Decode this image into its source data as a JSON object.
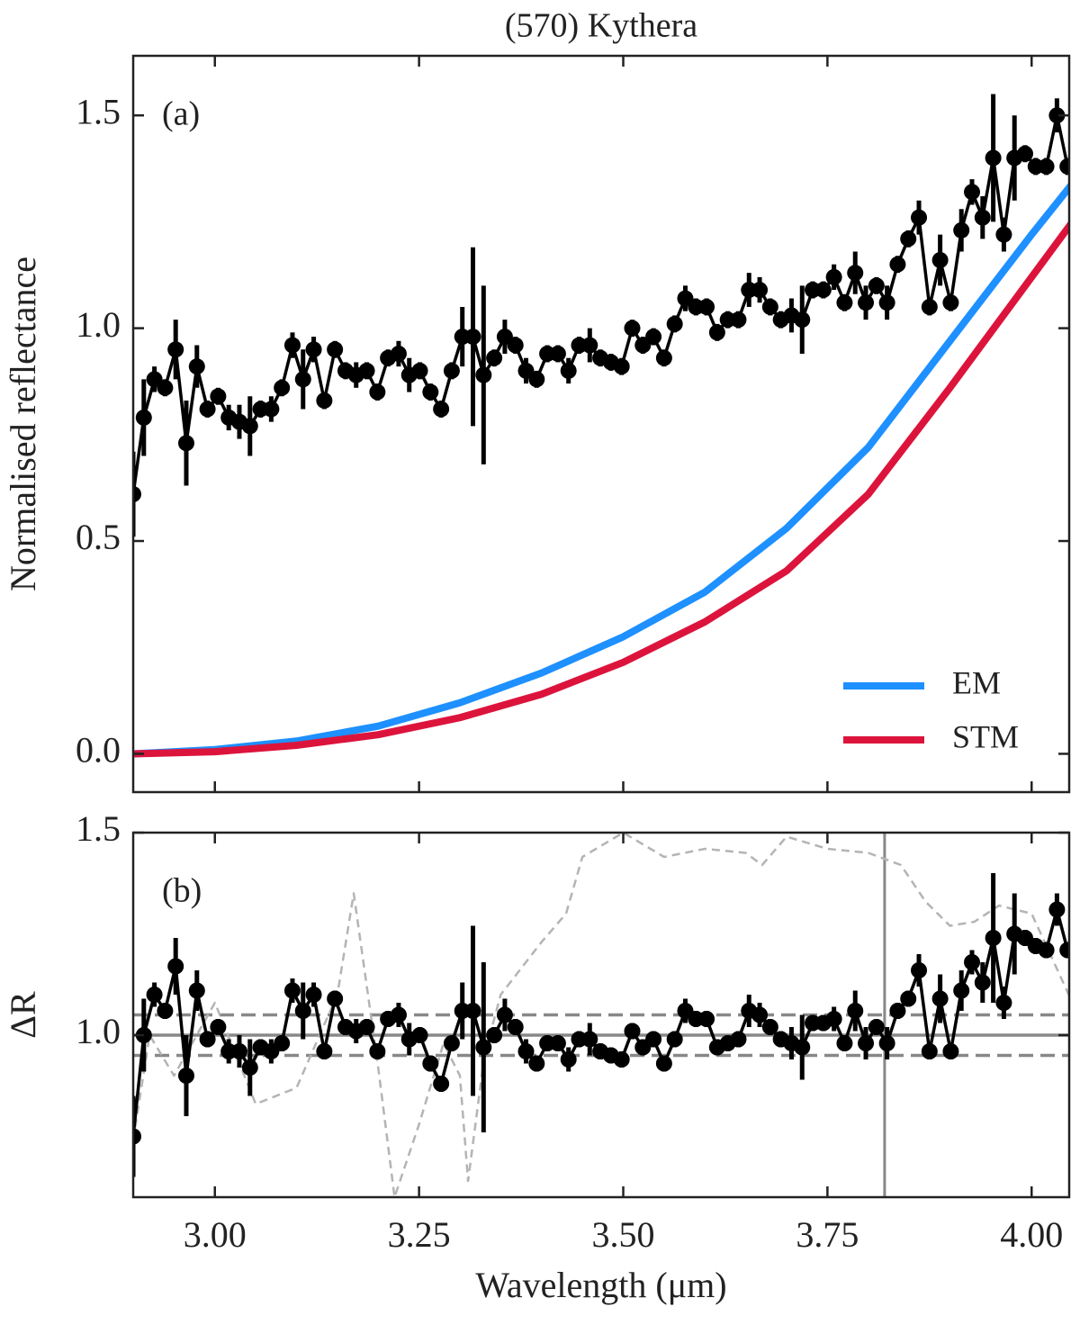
{
  "chart_data": [
    {
      "type": "line",
      "title": "(570) Kythera",
      "panel_label": "(a)",
      "ylabel": "Normalised reflectance",
      "xlim": [
        2.9,
        4.046
      ],
      "ylim": [
        -0.09,
        1.64
      ],
      "yticks": [
        {
          "value": 0,
          "label": "0.0"
        },
        0.5,
        {
          "value": 1,
          "label": "1.0"
        },
        1.5
      ],
      "legend": "lower right",
      "series": [
        {
          "color": "#000000",
          "marker": "o",
          "style": "solid",
          "x": [
            2.9,
            2.913,
            2.926,
            2.939,
            2.952,
            2.965,
            2.978,
            2.991,
            3.004,
            3.017,
            3.03,
            3.043,
            3.056,
            3.069,
            3.082,
            3.095,
            3.108,
            3.121,
            3.134,
            3.147,
            3.16,
            3.173,
            3.186,
            3.199,
            3.212,
            3.225,
            3.238,
            3.251,
            3.264,
            3.277,
            3.29,
            3.303,
            3.316,
            3.329,
            3.342,
            3.355,
            3.368,
            3.381,
            3.394,
            3.407,
            3.42,
            3.433,
            3.446,
            3.459,
            3.472,
            3.485,
            3.498,
            3.511,
            3.524,
            3.537,
            3.55,
            3.563,
            3.576,
            3.589,
            3.602,
            3.615,
            3.628,
            3.641,
            3.654,
            3.667,
            3.68,
            3.693,
            3.706,
            3.719,
            3.732,
            3.745,
            3.758,
            3.771,
            3.784,
            3.797,
            3.81,
            3.823,
            3.836,
            3.849,
            3.862,
            3.875,
            3.888,
            3.901,
            3.914,
            3.927,
            3.94,
            3.953,
            3.966,
            3.979,
            3.992,
            4.005,
            4.018,
            4.031,
            4.044
          ],
          "values": [
            0.61,
            0.79,
            0.88,
            0.86,
            0.95,
            0.73,
            0.91,
            0.81,
            0.84,
            0.79,
            0.78,
            0.77,
            0.81,
            0.81,
            0.86,
            0.96,
            0.88,
            0.95,
            0.83,
            0.95,
            0.9,
            0.89,
            0.9,
            0.85,
            0.93,
            0.94,
            0.89,
            0.9,
            0.85,
            0.81,
            0.9,
            0.98,
            0.98,
            0.89,
            0.93,
            0.98,
            0.96,
            0.9,
            0.88,
            0.94,
            0.94,
            0.9,
            0.96,
            0.96,
            0.93,
            0.92,
            0.91,
            1.0,
            0.96,
            0.98,
            0.93,
            1.01,
            1.07,
            1.05,
            1.05,
            0.99,
            1.02,
            1.02,
            1.09,
            1.09,
            1.05,
            1.02,
            1.03,
            1.02,
            1.09,
            1.09,
            1.12,
            1.06,
            1.13,
            1.06,
            1.1,
            1.06,
            1.15,
            1.21,
            1.26,
            1.05,
            1.16,
            1.06,
            1.23,
            1.32,
            1.26,
            1.4,
            1.22,
            1.4,
            1.41,
            1.38,
            1.38,
            1.5,
            1.38
          ],
          "errors": [
            0.1,
            0.09,
            0.03,
            0.02,
            0.07,
            0.1,
            0.05,
            0.02,
            0.02,
            0.03,
            0.04,
            0.07,
            0.02,
            0.03,
            0.02,
            0.03,
            0.07,
            0.03,
            0.02,
            0.02,
            0.02,
            0.03,
            0.02,
            0.02,
            0.02,
            0.03,
            0.04,
            0.02,
            0.02,
            0.02,
            0.02,
            0.07,
            0.21,
            0.21,
            0.02,
            0.04,
            0.02,
            0.03,
            0.02,
            0.02,
            0.02,
            0.03,
            0.02,
            0.04,
            0.02,
            0.02,
            0.02,
            0.02,
            0.02,
            0.02,
            0.02,
            0.02,
            0.03,
            0.02,
            0.02,
            0.02,
            0.02,
            0.02,
            0.04,
            0.03,
            0.02,
            0.02,
            0.04,
            0.08,
            0.02,
            0.02,
            0.03,
            0.02,
            0.05,
            0.04,
            0.02,
            0.04,
            0.02,
            0.02,
            0.04,
            0.02,
            0.06,
            0.02,
            0.05,
            0.03,
            0.05,
            0.15,
            0.04,
            0.1,
            0.02,
            0.02,
            0.02,
            0.04,
            0.02
          ]
        },
        {
          "name": "EM",
          "color": "#1e90ff",
          "style": "solid",
          "x": [
            2.9,
            3.0,
            3.1,
            3.2,
            3.3,
            3.4,
            3.5,
            3.6,
            3.7,
            3.8,
            3.9,
            4.0,
            4.05
          ],
          "values": [
            0,
            0.01,
            0.03,
            0.065,
            0.12,
            0.19,
            0.275,
            0.38,
            0.53,
            0.72,
            0.97,
            1.22,
            1.34
          ]
        },
        {
          "name": "STM",
          "color": "#dc143c",
          "style": "solid",
          "x": [
            2.9,
            3.0,
            3.1,
            3.2,
            3.3,
            3.4,
            3.5,
            3.6,
            3.7,
            3.8,
            3.9,
            4.0,
            4.05
          ],
          "values": [
            0,
            0.005,
            0.02,
            0.045,
            0.085,
            0.14,
            0.215,
            0.31,
            0.43,
            0.61,
            0.86,
            1.12,
            1.25
          ]
        }
      ]
    },
    {
      "type": "line",
      "panel_label": "(b)",
      "ylabel": "ΔR",
      "xlabel": "Wavelength (μm)",
      "xlim": [
        2.9,
        4.046
      ],
      "ylim": [
        0.6,
        1.5
      ],
      "xticks": [
        {
          "value": 3,
          "label": "3.00"
        },
        {
          "value": 3.25,
          "label": "3.25"
        },
        {
          "value": 3.5,
          "label": "3.50"
        },
        {
          "value": 3.75,
          "label": "3.75"
        },
        {
          "value": 4,
          "label": "4.00"
        }
      ],
      "yticks": [
        {
          "value": 1,
          "label": "1.0"
        },
        1.5
      ],
      "hlines": [
        {
          "y": 1,
          "style": "solid"
        },
        {
          "y": 1.05,
          "style": "dashed"
        },
        {
          "y": 0.95,
          "style": "dashed"
        }
      ],
      "vline": 3.82,
      "line_color": "#888888",
      "series": [
        {
          "color": "#b4b4b4",
          "style": "dashed",
          "x": [
            2.9,
            2.92,
            2.95,
            3.0,
            3.05,
            3.1,
            3.15,
            3.17,
            3.2,
            3.22,
            3.25,
            3.28,
            3.3,
            3.31,
            3.33,
            3.35,
            3.4,
            3.43,
            3.45,
            3.5,
            3.55,
            3.6,
            3.65,
            3.67,
            3.7,
            3.75,
            3.8,
            3.84,
            3.87,
            3.9,
            3.93,
            3.96,
            4.0,
            4.05
          ],
          "values": [
            0.74,
            1.0,
            0.9,
            1.08,
            0.83,
            0.87,
            1.1,
            1.35,
            0.92,
            0.6,
            0.78,
            0.98,
            0.9,
            0.64,
            0.95,
            1.1,
            1.23,
            1.3,
            1.44,
            1.5,
            1.44,
            1.46,
            1.45,
            1.42,
            1.49,
            1.46,
            1.45,
            1.42,
            1.33,
            1.27,
            1.28,
            1.32,
            1.3,
            1.08
          ]
        },
        {
          "color": "#000000",
          "marker": "o",
          "style": "solid",
          "x": [
            2.9,
            2.913,
            2.926,
            2.939,
            2.952,
            2.965,
            2.978,
            2.991,
            3.004,
            3.017,
            3.03,
            3.043,
            3.056,
            3.069,
            3.082,
            3.095,
            3.108,
            3.121,
            3.134,
            3.147,
            3.16,
            3.173,
            3.186,
            3.199,
            3.212,
            3.225,
            3.238,
            3.251,
            3.264,
            3.277,
            3.29,
            3.303,
            3.316,
            3.329,
            3.342,
            3.355,
            3.368,
            3.381,
            3.394,
            3.407,
            3.42,
            3.433,
            3.446,
            3.459,
            3.472,
            3.485,
            3.498,
            3.511,
            3.524,
            3.537,
            3.55,
            3.563,
            3.576,
            3.589,
            3.602,
            3.615,
            3.628,
            3.641,
            3.654,
            3.667,
            3.68,
            3.693,
            3.706,
            3.719,
            3.732,
            3.745,
            3.758,
            3.771,
            3.784,
            3.797,
            3.81,
            3.823,
            3.836,
            3.849,
            3.862,
            3.875,
            3.888,
            3.901,
            3.914,
            3.927,
            3.94,
            3.953,
            3.966,
            3.979,
            3.992,
            4.005,
            4.018,
            4.031,
            4.044
          ],
          "values": [
            0.75,
            1.0,
            1.1,
            1.06,
            1.17,
            0.9,
            1.11,
            0.99,
            1.02,
            0.96,
            0.96,
            0.92,
            0.97,
            0.96,
            0.98,
            1.11,
            1.06,
            1.1,
            0.96,
            1.09,
            1.02,
            1.01,
            1.02,
            0.96,
            1.04,
            1.05,
            0.99,
            1.0,
            0.93,
            0.88,
            0.98,
            1.06,
            1.06,
            0.97,
            1.0,
            1.05,
            1.02,
            0.96,
            0.93,
            0.98,
            0.98,
            0.94,
            0.99,
            0.99,
            0.96,
            0.95,
            0.94,
            1.01,
            0.97,
            0.99,
            0.93,
            0.99,
            1.06,
            1.04,
            1.04,
            0.97,
            0.98,
            0.99,
            1.06,
            1.05,
            1.02,
            0.99,
            0.98,
            0.97,
            1.03,
            1.03,
            1.04,
            0.98,
            1.06,
            0.98,
            1.02,
            0.98,
            1.06,
            1.09,
            1.16,
            0.96,
            1.09,
            0.96,
            1.11,
            1.18,
            1.13,
            1.24,
            1.08,
            1.25,
            1.24,
            1.22,
            1.21,
            1.31,
            1.21
          ],
          "errors": [
            0.1,
            0.09,
            0.03,
            0.02,
            0.07,
            0.1,
            0.05,
            0.02,
            0.02,
            0.03,
            0.04,
            0.07,
            0.02,
            0.03,
            0.02,
            0.03,
            0.07,
            0.03,
            0.02,
            0.02,
            0.02,
            0.03,
            0.02,
            0.02,
            0.02,
            0.03,
            0.04,
            0.02,
            0.02,
            0.02,
            0.02,
            0.07,
            0.21,
            0.21,
            0.02,
            0.04,
            0.02,
            0.03,
            0.02,
            0.02,
            0.02,
            0.03,
            0.02,
            0.04,
            0.02,
            0.02,
            0.02,
            0.02,
            0.02,
            0.02,
            0.02,
            0.02,
            0.03,
            0.02,
            0.02,
            0.02,
            0.02,
            0.02,
            0.04,
            0.03,
            0.02,
            0.02,
            0.04,
            0.08,
            0.02,
            0.02,
            0.03,
            0.02,
            0.05,
            0.04,
            0.02,
            0.04,
            0.02,
            0.02,
            0.04,
            0.02,
            0.06,
            0.02,
            0.05,
            0.03,
            0.05,
            0.16,
            0.04,
            0.1,
            0.02,
            0.02,
            0.02,
            0.04,
            0.02
          ]
        }
      ]
    }
  ]
}
